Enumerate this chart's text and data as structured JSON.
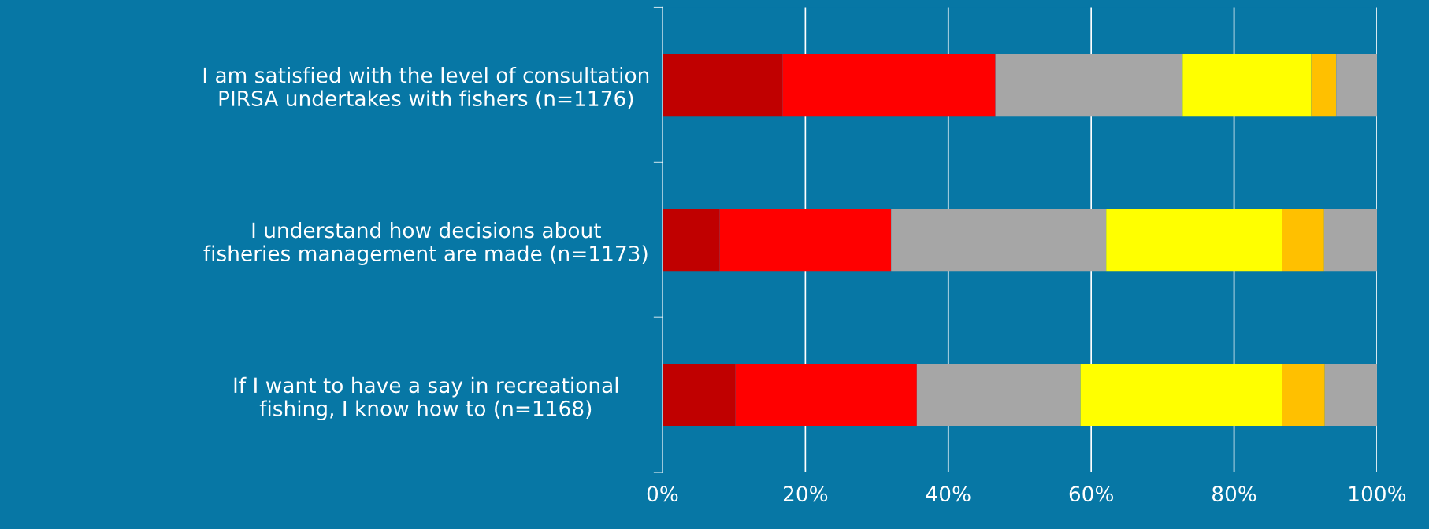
{
  "chart_data": {
    "type": "bar",
    "orientation": "horizontal",
    "stacked": true,
    "categories": [
      "I am satisfied with the level of consultation PIRSA undertakes with fishers (n=1176)",
      "I understand how decisions about fisheries management are made (n=1173)",
      "If I want to have a say in recreational fishing, I know how to (n=1168)"
    ],
    "series": [
      {
        "color": "#c00000",
        "values": [
          16.8,
          8.0,
          10.2
        ]
      },
      {
        "color": "#ff0000",
        "values": [
          29.8,
          24.0,
          25.4
        ]
      },
      {
        "color": "#a6a6a6",
        "values": [
          26.2,
          30.1,
          22.9
        ]
      },
      {
        "color": "#ffff00",
        "values": [
          18.0,
          24.6,
          28.2
        ]
      },
      {
        "color": "#ffc000",
        "values": [
          3.5,
          5.9,
          6.0
        ]
      },
      {
        "color": "#a6a6a6",
        "values": [
          5.7,
          7.4,
          7.3
        ]
      }
    ],
    "xlim": [
      0,
      100
    ],
    "xticks": [
      {
        "value": 0,
        "label": "0%"
      },
      {
        "value": 20,
        "label": "20%"
      },
      {
        "value": 40,
        "label": "40%"
      },
      {
        "value": 60,
        "label": "60%"
      },
      {
        "value": 80,
        "label": "80%"
      },
      {
        "value": 100,
        "label": "100%"
      }
    ],
    "grid": "x"
  }
}
